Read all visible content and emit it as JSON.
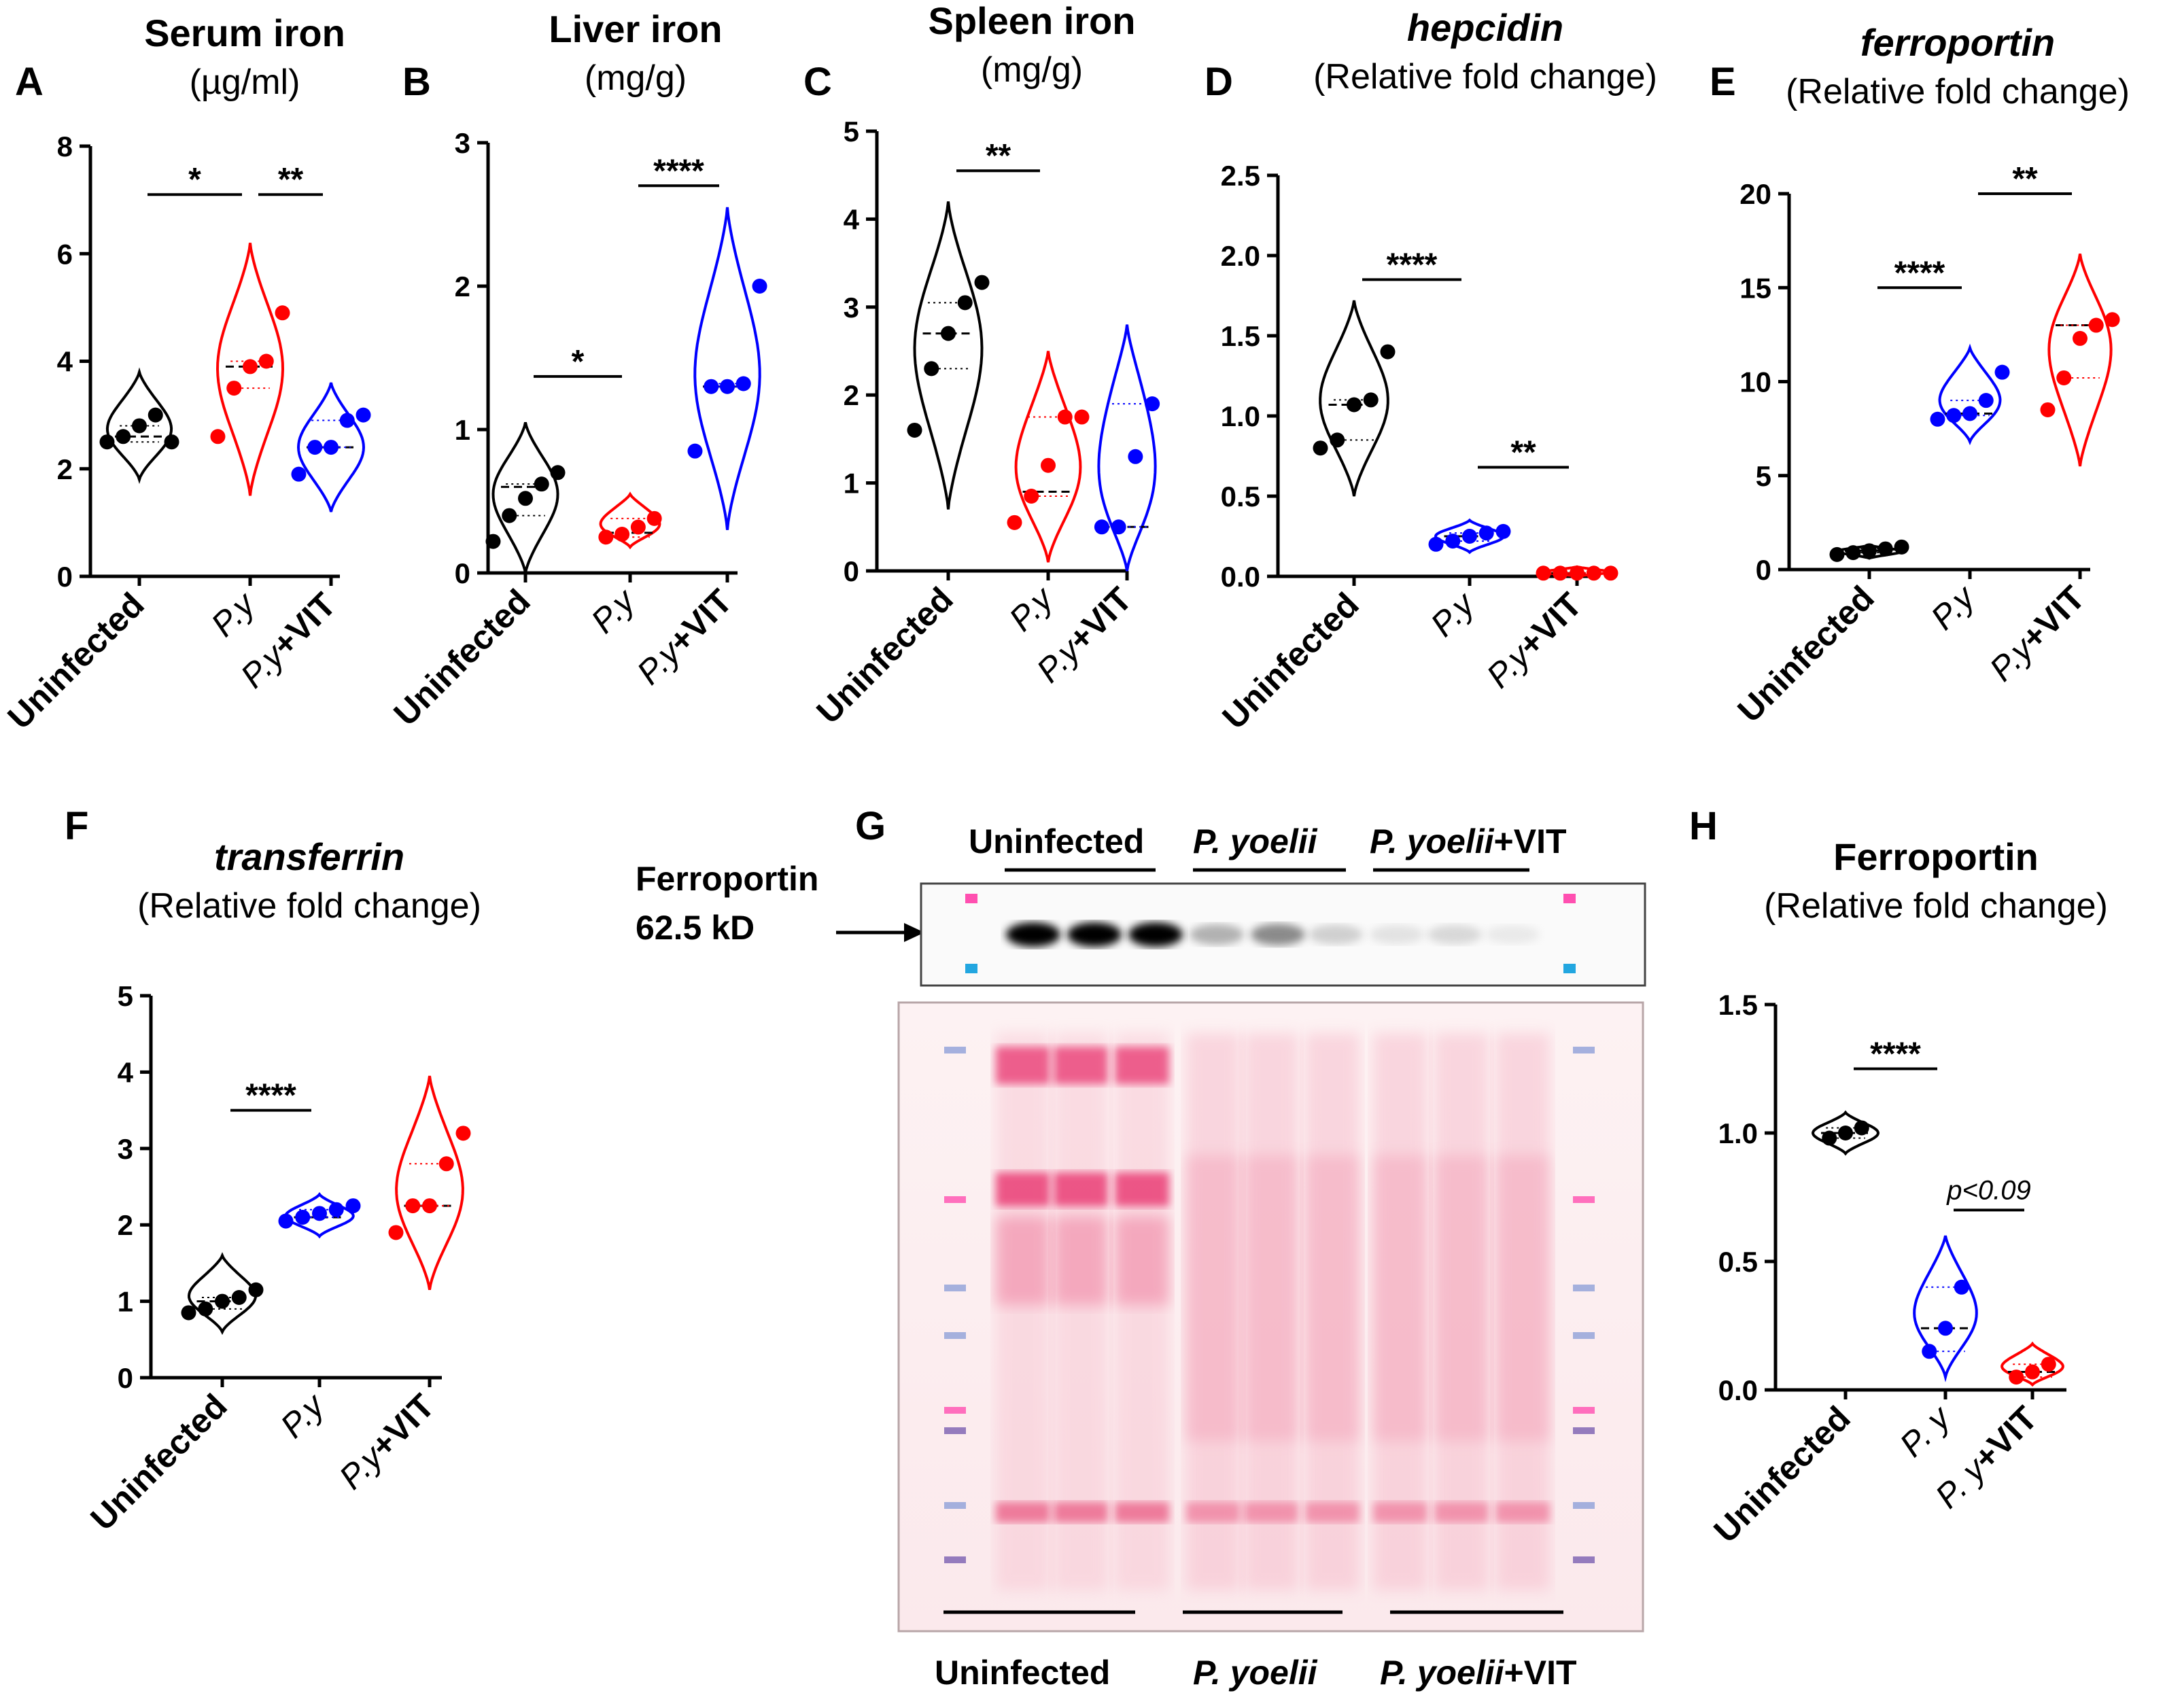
{
  "colors": {
    "uninfected": "#000000",
    "py": "#ff0000",
    "pyvit": "#0000ff",
    "pyvit_E": "#ff0000",
    "py_E": "#0000ff"
  },
  "chart_data": [
    {
      "id": "A",
      "letter": "A",
      "type": "violin",
      "title": "Serum iron",
      "title_italic": false,
      "subtitle": "(µg/ml)",
      "ylim": [
        0,
        8
      ],
      "yticks": [
        "0",
        "2",
        "4",
        "6",
        "8"
      ],
      "categories": [
        "Uninfected",
        "P.y",
        "P.y+VIT"
      ],
      "series": [
        {
          "name": "Uninfected",
          "points": [
            2.5,
            2.6,
            2.8,
            3.0,
            2.5
          ],
          "median": 2.6,
          "range": [
            1.8,
            3.8
          ]
        },
        {
          "name": "P.y",
          "points": [
            2.6,
            3.5,
            3.9,
            4.0,
            4.9
          ],
          "median": 3.9,
          "range": [
            1.5,
            6.2
          ]
        },
        {
          "name": "P.y+VIT",
          "points": [
            1.9,
            2.4,
            2.4,
            2.9,
            3.0
          ],
          "median": 2.4,
          "range": [
            1.2,
            3.6
          ]
        }
      ],
      "significance": [
        {
          "from": 0,
          "to": 1,
          "label": "*",
          "y": 7.1
        },
        {
          "from": 1,
          "to": 2,
          "label": "**",
          "y": 7.1
        }
      ]
    },
    {
      "id": "B",
      "letter": "B",
      "type": "violin",
      "title": "Liver iron",
      "title_italic": false,
      "subtitle": "(mg/g)",
      "ylim": [
        0,
        3
      ],
      "yticks": [
        "0",
        "1",
        "2",
        "3"
      ],
      "categories": [
        "Uninfected",
        "P.y",
        "P.y+VIT"
      ],
      "series": [
        {
          "name": "Uninfected",
          "points": [
            0.22,
            0.4,
            0.52,
            0.62,
            0.7
          ],
          "median": 0.6,
          "range": [
            0.0,
            1.05
          ]
        },
        {
          "name": "P.y",
          "points": [
            0.25,
            0.27,
            0.32,
            0.38
          ],
          "median": 0.28,
          "range": [
            0.18,
            0.55
          ]
        },
        {
          "name": "P.y+VIT",
          "points": [
            0.85,
            1.3,
            1.3,
            1.32,
            2.0
          ],
          "median": 1.3,
          "range": [
            0.3,
            2.55
          ]
        }
      ],
      "significance": [
        {
          "from": 0,
          "to": 1,
          "label": "*",
          "y": 1.37
        },
        {
          "from": 1,
          "to": 2,
          "label": "****",
          "y": 2.7
        }
      ]
    },
    {
      "id": "C",
      "letter": "C",
      "type": "violin",
      "title": "Spleen iron",
      "title_italic": false,
      "subtitle": "(mg/g)",
      "ylim": [
        0,
        5
      ],
      "yticks": [
        "0",
        "1",
        "2",
        "3",
        "4",
        "5"
      ],
      "categories": [
        "Uninfected",
        "P.y",
        "P.y+VIT"
      ],
      "series": [
        {
          "name": "Uninfected",
          "points": [
            1.6,
            2.3,
            2.7,
            3.05,
            3.28
          ],
          "median": 2.7,
          "range": [
            0.7,
            4.2
          ]
        },
        {
          "name": "P.y",
          "points": [
            0.55,
            0.85,
            1.2,
            1.75,
            1.75
          ],
          "median": 0.9,
          "range": [
            0.1,
            2.5
          ]
        },
        {
          "name": "P.y+VIT",
          "points": [
            0.5,
            0.5,
            1.3,
            1.9
          ],
          "median": 0.5,
          "range": [
            0.0,
            2.8
          ]
        }
      ],
      "significance": [
        {
          "from": 0,
          "to": 1,
          "label": "**",
          "y": 4.55
        }
      ]
    },
    {
      "id": "D",
      "letter": "D",
      "type": "violin",
      "title": "hepcidin",
      "title_italic": true,
      "subtitle": "(Relative fold change)",
      "ylim": [
        0,
        2.5
      ],
      "yticks": [
        "0.0",
        "0.5",
        "1.0",
        "1.5",
        "2.0",
        "2.5"
      ],
      "categories": [
        "Uninfected",
        "P.y",
        "P.y+VIT"
      ],
      "series": [
        {
          "name": "Uninfected",
          "points": [
            0.8,
            0.85,
            1.07,
            1.1,
            1.4
          ],
          "median": 1.07,
          "range": [
            0.5,
            1.72
          ]
        },
        {
          "name": "P.y",
          "points": [
            0.2,
            0.22,
            0.25,
            0.27,
            0.28
          ],
          "median": 0.25,
          "range": [
            0.15,
            0.35
          ]
        },
        {
          "name": "P.y+VIT",
          "points": [
            0.02,
            0.02,
            0.02,
            0.02,
            0.02
          ],
          "median": 0.02,
          "range": [
            0.0,
            0.06
          ]
        }
      ],
      "significance": [
        {
          "from": 0,
          "to": 1,
          "label": "****",
          "y": 1.85
        },
        {
          "from": 1,
          "to": 2,
          "label": "**",
          "y": 0.68
        }
      ]
    },
    {
      "id": "E",
      "letter": "E",
      "type": "violin",
      "title": "ferroportin",
      "title_italic": true,
      "subtitle": "(Relative fold change)",
      "ylim": [
        0,
        20
      ],
      "yticks": [
        "0",
        "5",
        "10",
        "15",
        "20"
      ],
      "categories": [
        "Uninfected",
        "P.y",
        "P.y+VIT"
      ],
      "series": [
        {
          "name": "Uninfected",
          "points": [
            0.8,
            0.9,
            1.0,
            1.1,
            1.2
          ],
          "median": 1.0,
          "range": [
            0.6,
            1.3
          ]
        },
        {
          "name": "P.y",
          "points": [
            8.0,
            8.2,
            8.3,
            9.0,
            10.5
          ],
          "median": 8.3,
          "range": [
            6.8,
            11.8
          ]
        },
        {
          "name": "P.y+VIT",
          "points": [
            8.5,
            10.2,
            12.3,
            13.0,
            13.3
          ],
          "median": 13.0,
          "range": [
            5.5,
            16.8
          ]
        }
      ],
      "significance": [
        {
          "from": 0,
          "to": 1,
          "label": "****",
          "y": 15.0
        },
        {
          "from": 1,
          "to": 2,
          "label": "**",
          "y": 20.0
        }
      ]
    },
    {
      "id": "F",
      "letter": "F",
      "type": "violin",
      "title": "transferrin",
      "title_italic": true,
      "subtitle": "(Relative fold change)",
      "ylim": [
        0,
        5
      ],
      "yticks": [
        "0",
        "1",
        "2",
        "3",
        "4",
        "5"
      ],
      "categories": [
        "Uninfected",
        "P.y",
        "P.y+VIT"
      ],
      "series": [
        {
          "name": "Uninfected",
          "points": [
            0.85,
            0.9,
            1.0,
            1.05,
            1.15
          ],
          "median": 1.0,
          "range": [
            0.6,
            1.6
          ]
        },
        {
          "name": "P.y",
          "points": [
            2.05,
            2.1,
            2.15,
            2.2,
            2.25
          ],
          "median": 2.1,
          "range": [
            1.85,
            2.4
          ]
        },
        {
          "name": "P.y+VIT",
          "points": [
            1.9,
            2.25,
            2.25,
            2.8,
            3.2
          ],
          "median": 2.25,
          "range": [
            1.15,
            3.95
          ]
        }
      ],
      "significance": [
        {
          "from": 0,
          "to": 1,
          "label": "****",
          "y": 3.5
        }
      ]
    },
    {
      "id": "H",
      "letter": "H",
      "type": "violin",
      "title": "Ferroportin",
      "title_italic": false,
      "subtitle": "(Relative fold change)",
      "ylim": [
        0,
        1.5
      ],
      "yticks": [
        "0.0",
        "0.5",
        "1.0",
        "1.5"
      ],
      "categories": [
        "Uninfected",
        "P. y",
        "P. y+VIT"
      ],
      "series": [
        {
          "name": "Uninfected",
          "points": [
            0.98,
            1.0,
            1.02
          ],
          "median": 1.0,
          "range": [
            0.92,
            1.08
          ]
        },
        {
          "name": "P. y",
          "points": [
            0.15,
            0.24,
            0.4
          ],
          "median": 0.24,
          "range": [
            0.05,
            0.6
          ]
        },
        {
          "name": "P. y+VIT",
          "points": [
            0.05,
            0.07,
            0.1
          ],
          "median": 0.07,
          "range": [
            0.02,
            0.18
          ]
        }
      ],
      "significance": [
        {
          "from": 0,
          "to": 1,
          "label": "****",
          "y": 1.25
        },
        {
          "from": 1,
          "to": 2,
          "label": "p<0.09",
          "y": 0.7,
          "italic": true
        }
      ]
    }
  ],
  "blot": {
    "letter": "G",
    "band_label_name": "Ferroportin",
    "band_label_size": "62.5 kD",
    "groups": [
      {
        "prefix": "Uninfected",
        "suffix": "",
        "italic": false
      },
      {
        "prefix": "P. yoelii",
        "suffix": "",
        "italic": true
      },
      {
        "prefix": "P. yoelii",
        "suffix": "+VIT",
        "italic": true
      }
    ],
    "band_intensities": [
      1.0,
      1.0,
      1.0,
      0.45,
      0.6,
      0.3,
      0.18,
      0.25,
      0.12
    ]
  }
}
